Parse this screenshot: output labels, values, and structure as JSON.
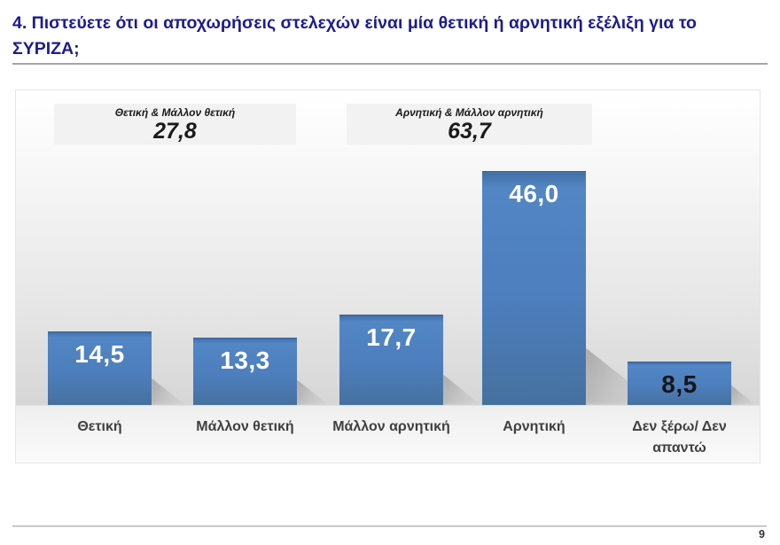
{
  "header": {
    "title": "4. Πιστεύετε ότι οι αποχωρήσεις στελεχών είναι μία θετική ή αρνητική εξέλιξη για το ΣΥΡΙΖΑ;"
  },
  "chart_data": {
    "type": "bar",
    "title": "",
    "categories": [
      "Θετική",
      "Μάλλον θετική",
      "Μάλλον αρνητική",
      "Αρνητική",
      "Δεν ξέρω/ Δεν απαντώ"
    ],
    "values": [
      14.5,
      13.3,
      17.7,
      46.0,
      8.5
    ],
    "value_labels": [
      "14,5",
      "13,3",
      "17,7",
      "46,0",
      "8,5"
    ],
    "value_label_colors": [
      "#ffffff",
      "#ffffff",
      "#ffffff",
      "#ffffff",
      "#161616"
    ],
    "summaries": [
      {
        "label": "Θετική & Μάλλον θετική",
        "value": "27,8"
      },
      {
        "label": "Αρνητική & Μάλλον αρνητική",
        "value": "63,7"
      }
    ],
    "bar_color": "#4d7ebd",
    "ylim": [
      0,
      50
    ],
    "grid": false,
    "legend": false,
    "xlabel": "",
    "ylabel": ""
  },
  "footer": {
    "page_number": "9"
  }
}
